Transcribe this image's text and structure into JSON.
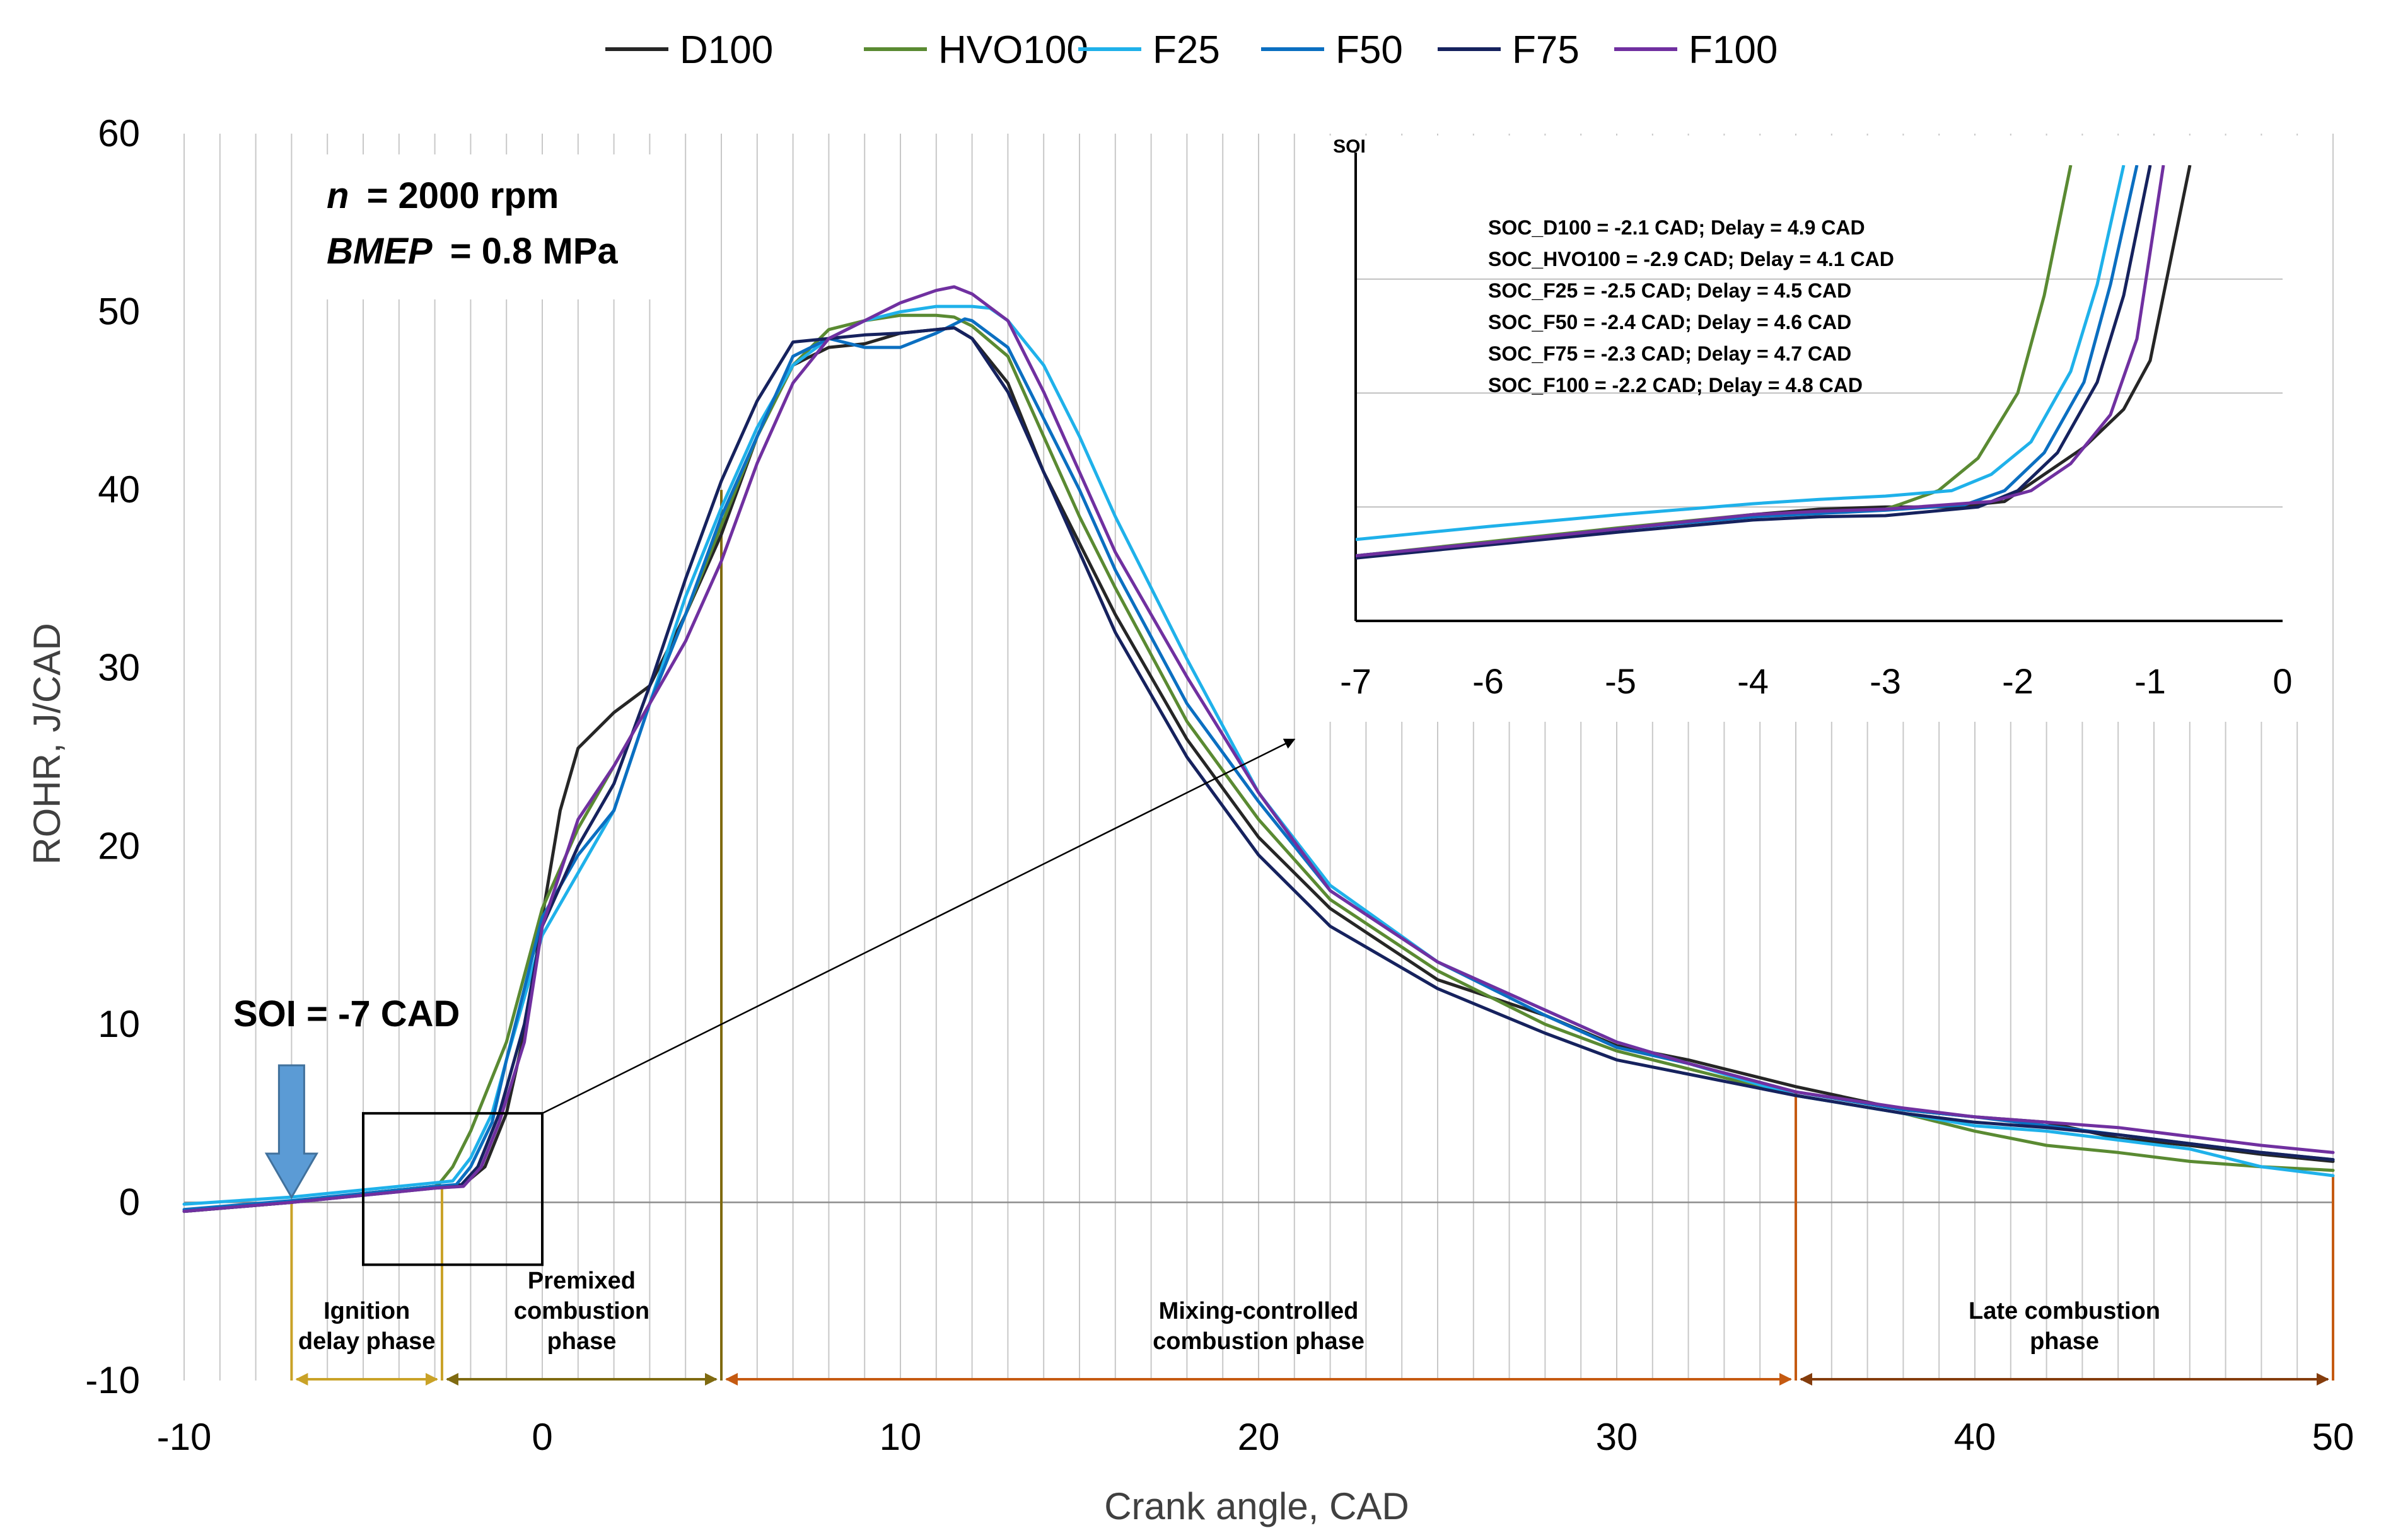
{
  "chart_data": {
    "type": "line",
    "title": "",
    "xlabel": "Crank angle, CAD",
    "ylabel": "ROHR, J/CAD",
    "xlim": [
      -10,
      50
    ],
    "ylim": [
      -10,
      60
    ],
    "xticks": [
      "-10",
      "0",
      "10",
      "20",
      "30",
      "40",
      "50"
    ],
    "yticks": [
      "-10",
      "0",
      "10",
      "20",
      "30",
      "40",
      "50",
      "60"
    ],
    "grid": "vertical minor lines every 1 CAD",
    "legend_position": "top-center",
    "series": [
      {
        "name": "D100",
        "color": "#262626",
        "width": 5,
        "x": [
          -10,
          -7,
          -5,
          -4,
          -3,
          -2.2,
          -1.6,
          -1,
          -0.5,
          0,
          0.5,
          1,
          2,
          3,
          4,
          5,
          6,
          7,
          8,
          9,
          10,
          11,
          11.5,
          12,
          13,
          14,
          15,
          16,
          18,
          20,
          22,
          25,
          28,
          30,
          32,
          35,
          38,
          40,
          42,
          44,
          46,
          48,
          50
        ],
        "y": [
          -0.5,
          0,
          0.5,
          0.7,
          0.9,
          1.0,
          2,
          5,
          9.5,
          16,
          22,
          25.5,
          27.5,
          29,
          33,
          37.5,
          43,
          47,
          48,
          48.2,
          48.8,
          49,
          49.1,
          48.5,
          46,
          41,
          37,
          33,
          26,
          20.5,
          16.5,
          12.5,
          10.5,
          8.8,
          8,
          6.5,
          5.2,
          4.8,
          4.5,
          3.6,
          3.2,
          2.7,
          2.3
        ]
      },
      {
        "name": "HVO100",
        "color": "#5a8a32",
        "width": 5,
        "x": [
          -10,
          -7,
          -5,
          -4,
          -3,
          -2.9,
          -2.5,
          -2,
          -1,
          0,
          1,
          2,
          3,
          4,
          5,
          6,
          7,
          8,
          9,
          10,
          11,
          11.5,
          12,
          13,
          14,
          15,
          16,
          18,
          20,
          22,
          25,
          28,
          30,
          32,
          35,
          38,
          40,
          42,
          44,
          46,
          48,
          50
        ],
        "y": [
          -0.5,
          0,
          0.5,
          0.7,
          0.9,
          1.0,
          2,
          4,
          9,
          16.5,
          21,
          24.5,
          28,
          33,
          38,
          43,
          47,
          49,
          49.5,
          49.8,
          49.8,
          49.7,
          49.2,
          47.5,
          43,
          38.5,
          34.5,
          27,
          21.5,
          17,
          13,
          10,
          8.5,
          7.5,
          6,
          5,
          4,
          3.2,
          2.8,
          2.3,
          2,
          1.8
        ]
      },
      {
        "name": "F25",
        "color": "#1fb1ea",
        "width": 5,
        "x": [
          -10,
          -7,
          -5,
          -4,
          -3,
          -2.5,
          -2,
          -1.4,
          -1,
          0,
          1,
          2,
          3,
          4,
          5,
          6,
          7,
          8,
          9,
          10,
          11,
          12,
          12.5,
          13,
          14,
          15,
          16,
          18,
          20,
          22,
          25,
          28,
          30,
          32,
          35,
          38,
          40,
          42,
          44,
          46,
          48,
          50
        ],
        "y": [
          -0.1,
          0.3,
          0.7,
          0.9,
          1.1,
          1.2,
          2.5,
          5,
          8,
          15,
          18.5,
          22,
          28,
          34,
          39,
          43.5,
          47,
          48.5,
          49.5,
          50,
          50.3,
          50.3,
          50.2,
          49.5,
          47,
          43,
          38.5,
          30.5,
          23,
          17.8,
          13.5,
          10.8,
          9,
          7.8,
          6,
          5,
          4.3,
          4,
          3.5,
          3,
          2,
          1.5
        ]
      },
      {
        "name": "F50",
        "color": "#0b6fc1",
        "width": 5,
        "x": [
          -10,
          -7,
          -5,
          -4,
          -3,
          -2.4,
          -2,
          -1.4,
          -1,
          0,
          1,
          2,
          3,
          4,
          5,
          6,
          7,
          8,
          9,
          10,
          11,
          11.8,
          12,
          13,
          14,
          15,
          16,
          18,
          20,
          22,
          25,
          28,
          30,
          32,
          35,
          38,
          40,
          42,
          44,
          46,
          48,
          50
        ],
        "y": [
          -0.4,
          0.1,
          0.5,
          0.7,
          0.9,
          1.0,
          2,
          4.5,
          8,
          16,
          19.5,
          22,
          28,
          33,
          38.5,
          43,
          47.5,
          48.5,
          48,
          48,
          48.8,
          49.6,
          49.5,
          48,
          44,
          40,
          35.5,
          28,
          22.5,
          17.5,
          13.5,
          10.5,
          8.7,
          7.8,
          6.2,
          5.2,
          4.8,
          4.3,
          3.8,
          3.3,
          2.8,
          2.4
        ]
      },
      {
        "name": "F75",
        "color": "#16225e",
        "width": 5,
        "x": [
          -10,
          -7,
          -5,
          -4,
          -3,
          -2.3,
          -1.8,
          -1.2,
          -0.5,
          0,
          1,
          2,
          3,
          4,
          5,
          6,
          7,
          8,
          9,
          10,
          11,
          11.5,
          12,
          13,
          14,
          15,
          16,
          18,
          20,
          22,
          25,
          28,
          30,
          32,
          35,
          38,
          40,
          42,
          44,
          46,
          48,
          50
        ],
        "y": [
          -0.5,
          0,
          0.4,
          0.6,
          0.8,
          0.9,
          2,
          5,
          10,
          15.5,
          20,
          23.5,
          29,
          35,
          40.5,
          45,
          48.3,
          48.5,
          48.7,
          48.8,
          49,
          49.1,
          48.5,
          45.5,
          41,
          36.5,
          32,
          25,
          19.5,
          15.5,
          12,
          9.5,
          8,
          7.2,
          6,
          5,
          4.5,
          4.2,
          3.8,
          3.3,
          2.8,
          2.4
        ]
      },
      {
        "name": "F100",
        "color": "#7030a0",
        "width": 5,
        "x": [
          -10,
          -7,
          -5,
          -4,
          -3,
          -2.2,
          -1.7,
          -1.2,
          -0.5,
          0,
          1,
          2,
          3,
          4,
          5,
          6,
          7,
          8,
          9,
          10,
          11,
          11.5,
          12,
          13,
          14,
          15,
          16,
          18,
          20,
          22,
          25,
          28,
          30,
          32,
          35,
          38,
          40,
          42,
          44,
          46,
          48,
          50
        ],
        "y": [
          -0.5,
          0,
          0.4,
          0.6,
          0.8,
          0.9,
          2,
          4.5,
          9,
          15.5,
          21.5,
          24.5,
          28,
          31.5,
          36,
          41.5,
          46,
          48.5,
          49.5,
          50.5,
          51.2,
          51.4,
          51,
          49.5,
          45.5,
          41,
          36.5,
          29.5,
          23,
          17.5,
          13.5,
          10.8,
          9,
          7.8,
          6.2,
          5.3,
          4.8,
          4.5,
          4.2,
          3.7,
          3.2,
          2.8
        ]
      }
    ],
    "annotations": {
      "conditions_n": "= 2000 rpm",
      "conditions_bmep": "= 0.8 MPa",
      "n_symbol": "n",
      "bmep_symbol": "BMEP",
      "soi_label": "SOI = -7 CAD",
      "soi_x": -7,
      "zoom_box": {
        "x": [
          -5,
          0
        ],
        "y": [
          -3.5,
          5
        ]
      },
      "zoom_arrow_to": [
        21,
        26
      ],
      "phases": [
        {
          "label_lines": [
            "Ignition",
            "delay phase"
          ],
          "from": -7,
          "to": -2.8,
          "color": "#c9a227"
        },
        {
          "label_lines": [
            "Premixed",
            "combustion",
            "phase"
          ],
          "from": -2.8,
          "to": 5,
          "color": "#7f6a10"
        },
        {
          "label_lines": [
            "Mixing-controlled",
            "combustion phase"
          ],
          "from": 5,
          "to": 35,
          "color": "#c55a11"
        },
        {
          "label_lines": [
            "Late combustion",
            "phase"
          ],
          "from": 35,
          "to": 50,
          "color": "#843c0c"
        }
      ],
      "phase_markers": [
        {
          "x": -7,
          "top": 0,
          "color": "#c9a227"
        },
        {
          "x": -2.8,
          "top": 1.0,
          "color": "#c9a227"
        },
        {
          "x": 5,
          "top": 40,
          "color": "#7f6a10"
        },
        {
          "x": 35,
          "top": 6.2,
          "color": "#c55a11"
        },
        {
          "x": 50,
          "top": 1.5,
          "color": "#c55a11"
        }
      ]
    },
    "inset": {
      "xlim": [
        -7,
        0
      ],
      "xticks": [
        "-7",
        "-6",
        "-5",
        "-4",
        "-3",
        "-2",
        "-1",
        "0"
      ],
      "ylabel": "SOI",
      "annotation_lines": [
        "SOC_D100 = -2.1 CAD; Delay = 4.9 CAD",
        "SOC_HVO100 = -2.9 CAD; Delay = 4.1 CAD",
        "SOC_F25 = -2.5 CAD; Delay = 4.5 CAD",
        "SOC_F50 = -2.4 CAD; Delay = 4.6 CAD",
        "SOC_F75 = -2.3 CAD; Delay = 4.7 CAD",
        "SOC_F100 = -2.2 CAD; Delay = 4.8 CAD"
      ],
      "ylim": [
        -0.6,
        3.6
      ],
      "series": [
        {
          "name": "D100",
          "x": [
            -7,
            -6,
            -5,
            -4,
            -3.5,
            -3,
            -2.5,
            -2.1,
            -1.8,
            -1.5,
            -1.2,
            -1.0,
            -0.7
          ],
          "y": [
            0.0,
            0.12,
            0.25,
            0.38,
            0.43,
            0.45,
            0.45,
            0.5,
            0.75,
            1.0,
            1.35,
            1.8,
            3.6
          ]
        },
        {
          "name": "HVO100",
          "x": [
            -7,
            -6,
            -5,
            -4,
            -3.5,
            -3,
            -2.9,
            -2.6,
            -2.3,
            -2.0,
            -1.8,
            -1.6
          ],
          "y": [
            0.0,
            0.13,
            0.26,
            0.38,
            0.4,
            0.43,
            0.47,
            0.6,
            0.9,
            1.5,
            2.4,
            3.6
          ]
        },
        {
          "name": "F25",
          "x": [
            -7,
            -6,
            -5,
            -4,
            -3.5,
            -3,
            -2.5,
            -2.2,
            -1.9,
            -1.6,
            -1.4,
            -1.2
          ],
          "y": [
            0.15,
            0.27,
            0.38,
            0.48,
            0.52,
            0.55,
            0.6,
            0.75,
            1.05,
            1.7,
            2.5,
            3.6
          ]
        },
        {
          "name": "F50",
          "x": [
            -7,
            -6,
            -5,
            -4,
            -3.5,
            -3,
            -2.4,
            -2.1,
            -1.8,
            -1.5,
            -1.3,
            -1.1
          ],
          "y": [
            0.0,
            0.12,
            0.25,
            0.36,
            0.39,
            0.42,
            0.47,
            0.6,
            0.95,
            1.6,
            2.5,
            3.6
          ]
        },
        {
          "name": "F75",
          "x": [
            -7,
            -6,
            -5,
            -4,
            -3.5,
            -3,
            -2.3,
            -2.0,
            -1.7,
            -1.4,
            -1.2,
            -1.0
          ],
          "y": [
            -0.02,
            0.1,
            0.22,
            0.33,
            0.36,
            0.37,
            0.45,
            0.6,
            0.95,
            1.6,
            2.4,
            3.6
          ]
        },
        {
          "name": "F100",
          "x": [
            -7,
            -6,
            -5,
            -4,
            -3.5,
            -3,
            -2.2,
            -1.9,
            -1.6,
            -1.3,
            -1.1,
            -0.9
          ],
          "y": [
            0.0,
            0.12,
            0.25,
            0.38,
            0.41,
            0.43,
            0.5,
            0.6,
            0.85,
            1.3,
            2.0,
            3.6
          ]
        }
      ]
    }
  }
}
